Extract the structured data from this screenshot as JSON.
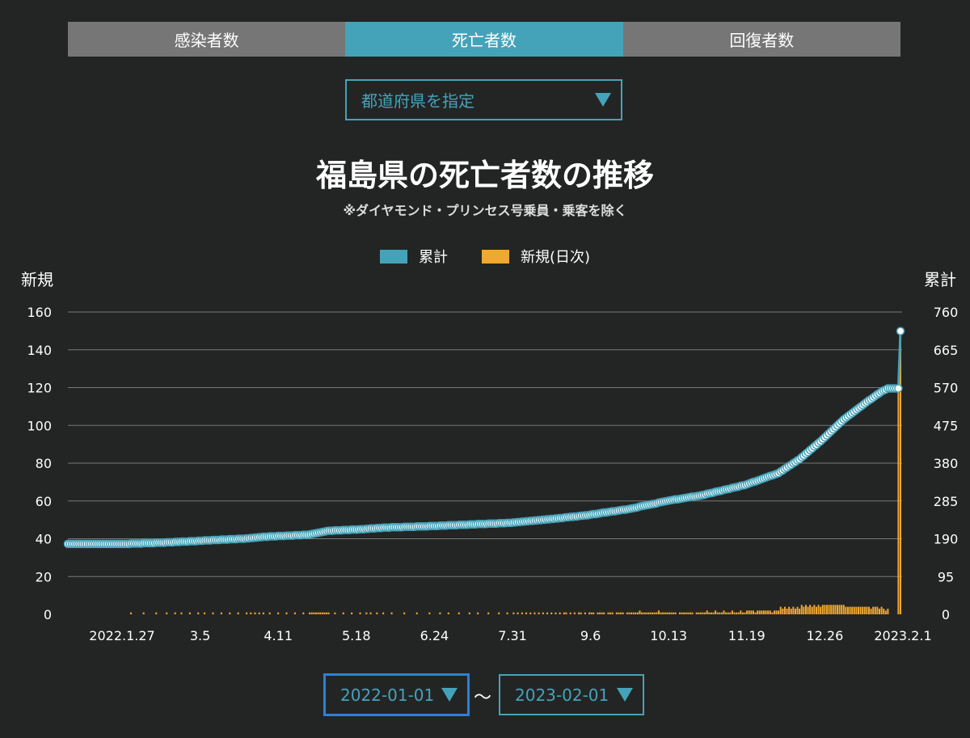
{
  "tabs": [
    {
      "label": "感染者数",
      "active": false
    },
    {
      "label": "死亡者数",
      "active": true
    },
    {
      "label": "回復者数",
      "active": false
    }
  ],
  "prefecture_select": {
    "placeholder": "都道府県を指定"
  },
  "colors": {
    "cumulative": "#45a3b9",
    "daily": "#f0a830",
    "background": "#232525",
    "grid": "#777777",
    "tab_inactive": "#767676"
  },
  "chart_data": {
    "type": "bar+line",
    "title": "福島県の死亡者数の推移",
    "subtitle": "※ダイヤモンド・プリンセス号乗員・乗客を除く",
    "legend": [
      {
        "name": "累計",
        "color": "#45a3b9"
      },
      {
        "name": "新規(日次)",
        "color": "#f0a830"
      }
    ],
    "legend_position": "top-center",
    "left_axis": {
      "label": "新規",
      "ticks": [
        0,
        20,
        40,
        60,
        80,
        100,
        120,
        140,
        160
      ],
      "range": [
        0,
        160
      ]
    },
    "right_axis": {
      "label": "累計",
      "ticks": [
        0,
        95,
        190,
        285,
        380,
        475,
        570,
        665,
        760
      ],
      "range": [
        0,
        760
      ]
    },
    "x_start": "2022-01-01",
    "x_end": "2023-02-01",
    "x_ticks": [
      "2022.1.27",
      "3.5",
      "4.11",
      "5.18",
      "6.24",
      "7.31",
      "9.6",
      "10.13",
      "11.19",
      "12.26",
      "2023.2.1"
    ],
    "grid": true,
    "cumulative_keypoints": [
      [
        "2022-01-01",
        177
      ],
      [
        "2022-01-27",
        177
      ],
      [
        "2022-02-15",
        180
      ],
      [
        "2022-03-05",
        185
      ],
      [
        "2022-03-25",
        190
      ],
      [
        "2022-04-05",
        195
      ],
      [
        "2022-04-25",
        200
      ],
      [
        "2022-05-05",
        210
      ],
      [
        "2022-05-18",
        213
      ],
      [
        "2022-06-01",
        218
      ],
      [
        "2022-06-24",
        222
      ],
      [
        "2022-07-31",
        230
      ],
      [
        "2022-08-20",
        240
      ],
      [
        "2022-09-06",
        250
      ],
      [
        "2022-09-25",
        265
      ],
      [
        "2022-10-13",
        285
      ],
      [
        "2022-10-30",
        300
      ],
      [
        "2022-11-19",
        325
      ],
      [
        "2022-12-05",
        355
      ],
      [
        "2022-12-15",
        390
      ],
      [
        "2022-12-26",
        440
      ],
      [
        "2023-01-05",
        490
      ],
      [
        "2023-01-15",
        530
      ],
      [
        "2023-01-23",
        560
      ],
      [
        "2023-01-26",
        568
      ],
      [
        "2023-01-31",
        568
      ],
      [
        "2023-02-01",
        712
      ]
    ],
    "daily_spikes": [
      [
        "2023-01-31",
        120
      ]
    ]
  },
  "date_range": {
    "start": "2022-01-01",
    "separator": "〜",
    "end": "2023-02-01"
  }
}
